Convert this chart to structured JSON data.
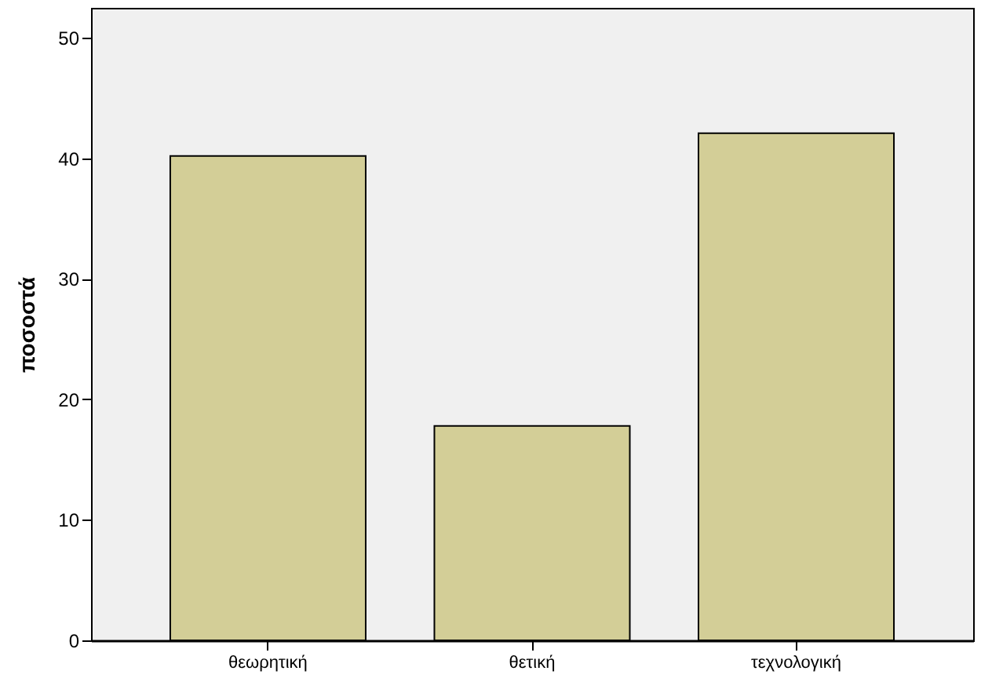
{
  "chart_data": {
    "type": "bar",
    "ylabel": "ποσοστά",
    "categories": [
      "θεωρητική",
      "θετική",
      "τεχνολογική"
    ],
    "values": [
      40.2,
      17.8,
      42.1
    ],
    "color": "#d3ce97",
    "ylim": [
      0,
      52.5
    ],
    "yticks": [
      0,
      10,
      20,
      30,
      40,
      50
    ],
    "grid": false
  }
}
